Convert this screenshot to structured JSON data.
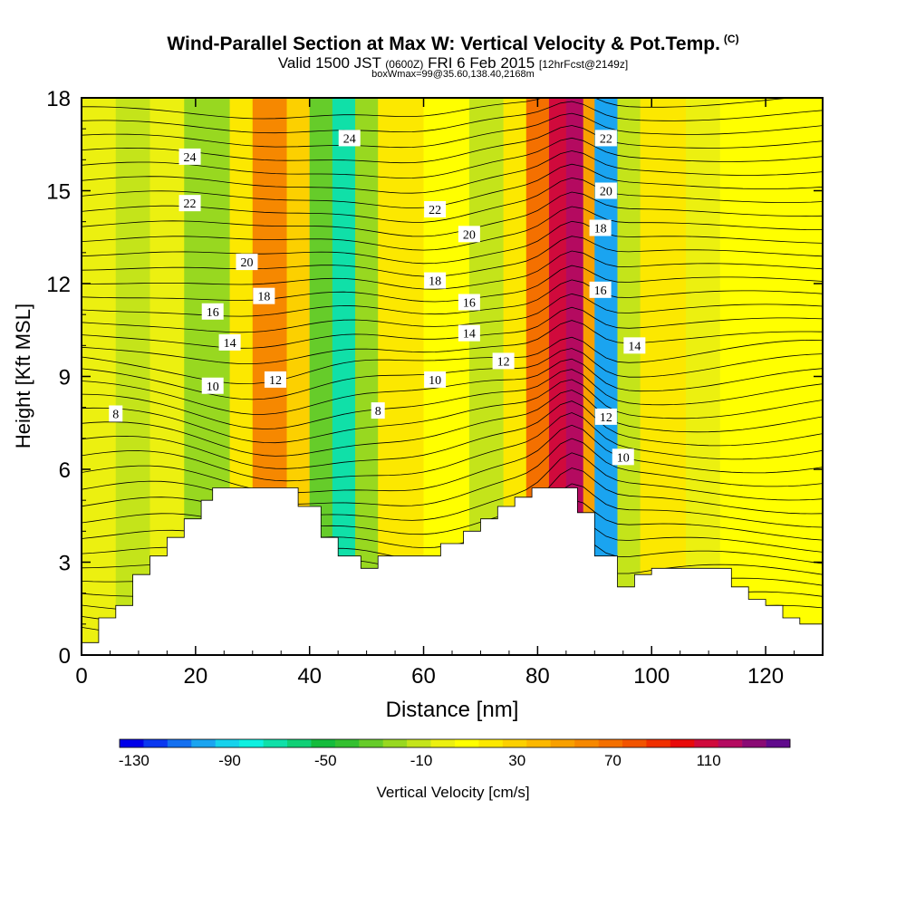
{
  "header": {
    "title": "Wind-Parallel Section at Max W: Vertical Velocity & Pot.Temp.",
    "copyright": "(C)",
    "valid_prefix": "Valid 1500 JST",
    "valid_utc": "(0600Z)",
    "valid_date": "FRI 6 Feb 2015",
    "forecast": "[12hrFcst@2149z]",
    "box_info": "boxWmax=99@35.60,138.40,2168m"
  },
  "chart_data": {
    "type": "heatmap",
    "xlabel": "Distance [nm]",
    "ylabel": "Height [Kft MSL]",
    "xlim": [
      0,
      130
    ],
    "ylim": [
      0,
      18
    ],
    "x_ticks": [
      "0",
      "20",
      "40",
      "60",
      "80",
      "100",
      "120"
    ],
    "y_ticks": [
      "0",
      "3",
      "6",
      "9",
      "12",
      "15",
      "18"
    ],
    "colorbar": {
      "label": "Vertical Velocity [cm/s]",
      "tick_labels": [
        "-130",
        "-90",
        "-50",
        "-10",
        "30",
        "70",
        "110"
      ],
      "colors": [
        "#0000e8",
        "#0a38f0",
        "#1470f0",
        "#1aa4f0",
        "#16d2ec",
        "#0ef0e0",
        "#10e0a8",
        "#10d076",
        "#14bc3c",
        "#34c030",
        "#66cc2a",
        "#98d820",
        "#c4e41a",
        "#ecf010",
        "#ffff00",
        "#fce800",
        "#fcd000",
        "#fcb800",
        "#f8a000",
        "#f68800",
        "#f47000",
        "#f25400",
        "#f03000",
        "#e80a0a",
        "#d00a3c",
        "#b40a60",
        "#8a0a74",
        "#600a8c"
      ]
    },
    "terrain_kft": [
      [
        0,
        0.4
      ],
      [
        3,
        0.4
      ],
      [
        3,
        1.2
      ],
      [
        6,
        1.2
      ],
      [
        6,
        1.6
      ],
      [
        9,
        1.6
      ],
      [
        9,
        2.6
      ],
      [
        12,
        2.6
      ],
      [
        12,
        3.2
      ],
      [
        15,
        3.2
      ],
      [
        15,
        3.8
      ],
      [
        18,
        3.8
      ],
      [
        18,
        4.4
      ],
      [
        21,
        4.4
      ],
      [
        21,
        5.0
      ],
      [
        23,
        5.0
      ],
      [
        23,
        5.4
      ],
      [
        38,
        5.4
      ],
      [
        38,
        4.8
      ],
      [
        42,
        4.8
      ],
      [
        42,
        3.8
      ],
      [
        45,
        3.8
      ],
      [
        45,
        3.2
      ],
      [
        49,
        3.2
      ],
      [
        49,
        2.8
      ],
      [
        52,
        2.8
      ],
      [
        52,
        3.2
      ],
      [
        63,
        3.2
      ],
      [
        63,
        3.6
      ],
      [
        67,
        3.6
      ],
      [
        67,
        4.0
      ],
      [
        70,
        4.0
      ],
      [
        70,
        4.4
      ],
      [
        73,
        4.4
      ],
      [
        73,
        4.8
      ],
      [
        76,
        4.8
      ],
      [
        76,
        5.1
      ],
      [
        79,
        5.1
      ],
      [
        79,
        5.4
      ],
      [
        87,
        5.4
      ],
      [
        87,
        4.6
      ],
      [
        90,
        4.6
      ],
      [
        90,
        3.2
      ],
      [
        94,
        3.2
      ],
      [
        94,
        2.2
      ],
      [
        97,
        2.2
      ],
      [
        97,
        2.6
      ],
      [
        100,
        2.6
      ],
      [
        100,
        2.8
      ],
      [
        106,
        2.8
      ],
      [
        106,
        2.8
      ],
      [
        114,
        2.8
      ],
      [
        114,
        2.2
      ],
      [
        117,
        2.2
      ],
      [
        117,
        1.8
      ],
      [
        120,
        1.8
      ],
      [
        120,
        1.6
      ],
      [
        123,
        1.6
      ],
      [
        123,
        1.2
      ],
      [
        126,
        1.2
      ],
      [
        126,
        1.0
      ],
      [
        130,
        1.0
      ]
    ],
    "vertical_velocity_bands": [
      {
        "x_range": [
          0,
          6
        ],
        "w_cms": -10
      },
      {
        "x_range": [
          6,
          12
        ],
        "w_cms": -20
      },
      {
        "x_range": [
          12,
          18
        ],
        "w_cms": -10
      },
      {
        "x_range": [
          18,
          26
        ],
        "w_cms": -30
      },
      {
        "x_range": [
          26,
          30
        ],
        "w_cms": 10
      },
      {
        "x_range": [
          30,
          36
        ],
        "w_cms": 50
      },
      {
        "x_range": [
          36,
          40
        ],
        "w_cms": 20
      },
      {
        "x_range": [
          40,
          44
        ],
        "w_cms": -40
      },
      {
        "x_range": [
          44,
          48
        ],
        "w_cms": -80
      },
      {
        "x_range": [
          48,
          52
        ],
        "w_cms": -30
      },
      {
        "x_range": [
          52,
          60
        ],
        "w_cms": 10
      },
      {
        "x_range": [
          60,
          68
        ],
        "w_cms": 0
      },
      {
        "x_range": [
          68,
          74
        ],
        "w_cms": -20
      },
      {
        "x_range": [
          74,
          78
        ],
        "w_cms": 10
      },
      {
        "x_range": [
          78,
          82
        ],
        "w_cms": 60
      },
      {
        "x_range": [
          82,
          85
        ],
        "w_cms": 100
      },
      {
        "x_range": [
          85,
          88
        ],
        "w_cms": 115
      },
      {
        "x_range": [
          88,
          90
        ],
        "w_cms": 40
      },
      {
        "x_range": [
          90,
          94
        ],
        "w_cms": -110
      },
      {
        "x_range": [
          94,
          98
        ],
        "w_cms": -20
      },
      {
        "x_range": [
          98,
          106
        ],
        "w_cms": 10
      },
      {
        "x_range": [
          106,
          112
        ],
        "w_cms": -10
      },
      {
        "x_range": [
          112,
          120
        ],
        "w_cms": 5
      },
      {
        "x_range": [
          120,
          130
        ],
        "w_cms": 0
      }
    ],
    "theta_contour_labels": [
      {
        "text": "24",
        "x": 19,
        "y": 16.1
      },
      {
        "text": "22",
        "x": 19,
        "y": 14.6
      },
      {
        "text": "20",
        "x": 29,
        "y": 12.7
      },
      {
        "text": "18",
        "x": 32,
        "y": 11.6
      },
      {
        "text": "16",
        "x": 23,
        "y": 11.1
      },
      {
        "text": "14",
        "x": 26,
        "y": 10.1
      },
      {
        "text": "12",
        "x": 34,
        "y": 8.9
      },
      {
        "text": "10",
        "x": 23,
        "y": 8.7
      },
      {
        "text": "8",
        "x": 6,
        "y": 7.8
      },
      {
        "text": "24",
        "x": 47,
        "y": 16.7
      },
      {
        "text": "22",
        "x": 62,
        "y": 14.4
      },
      {
        "text": "20",
        "x": 68,
        "y": 13.6
      },
      {
        "text": "18",
        "x": 62,
        "y": 12.1
      },
      {
        "text": "16",
        "x": 68,
        "y": 11.4
      },
      {
        "text": "14",
        "x": 68,
        "y": 10.4
      },
      {
        "text": "12",
        "x": 74,
        "y": 9.5
      },
      {
        "text": "10",
        "x": 62,
        "y": 8.9
      },
      {
        "text": "8",
        "x": 52,
        "y": 7.9
      },
      {
        "text": "22",
        "x": 92,
        "y": 16.7
      },
      {
        "text": "20",
        "x": 92,
        "y": 15.0
      },
      {
        "text": "18",
        "x": 91,
        "y": 13.8
      },
      {
        "text": "16",
        "x": 91,
        "y": 11.8
      },
      {
        "text": "14",
        "x": 97,
        "y": 10.0
      },
      {
        "text": "12",
        "x": 92,
        "y": 7.7
      },
      {
        "text": "10",
        "x": 95,
        "y": 6.4
      }
    ]
  }
}
